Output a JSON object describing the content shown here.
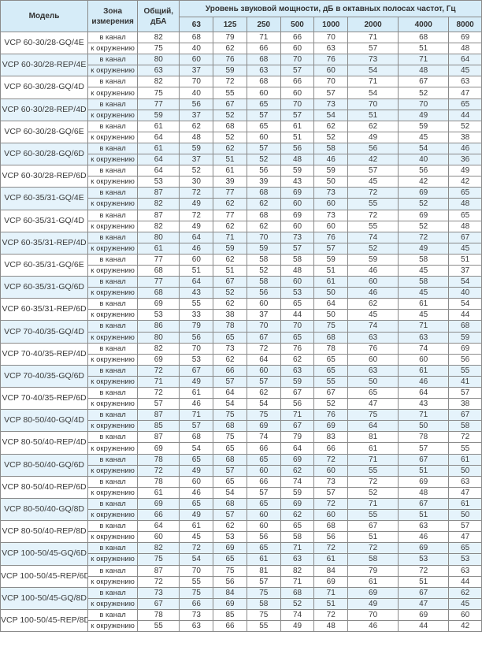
{
  "header": {
    "model": "Модель",
    "zone": "Зона измерения",
    "total": "Общий, дБА",
    "bands_title": "Уровень звуковой мощности, дБ в октавных полосах частот, Гц",
    "bands": [
      "63",
      "125",
      "250",
      "500",
      "1000",
      "2000",
      "4000",
      "8000"
    ]
  },
  "zones": [
    "в канал",
    "к окружению"
  ],
  "colors": {
    "header_bg": "#d6ecf8",
    "alt_row_bg": "#e5f3fb",
    "border": "#8a8a8a"
  },
  "rows": [
    {
      "model": "VCP 60-30/28-GQ/4E",
      "duct": [
        82,
        68,
        79,
        71,
        66,
        70,
        71,
        68,
        69
      ],
      "env": [
        75,
        40,
        62,
        66,
        60,
        63,
        57,
        51,
        48
      ]
    },
    {
      "model": "VCP 60-30/28-REP/4E",
      "duct": [
        80,
        60,
        76,
        68,
        70,
        76,
        73,
        71,
        64
      ],
      "env": [
        63,
        37,
        59,
        63,
        57,
        60,
        54,
        48,
        45
      ]
    },
    {
      "model": "VCP 60-30/28-GQ/4D",
      "duct": [
        82,
        70,
        72,
        68,
        66,
        70,
        71,
        67,
        63
      ],
      "env": [
        75,
        40,
        55,
        60,
        60,
        57,
        54,
        52,
        47
      ]
    },
    {
      "model": "VCP 60-30/28-REP/4D",
      "duct": [
        77,
        56,
        67,
        65,
        70,
        73,
        70,
        70,
        65
      ],
      "env": [
        59,
        37,
        52,
        57,
        57,
        54,
        51,
        49,
        44
      ]
    },
    {
      "model": "VCP 60-30/28-GQ/6E",
      "duct": [
        61,
        62,
        68,
        65,
        61,
        62,
        62,
        59,
        52
      ],
      "env": [
        64,
        48,
        52,
        60,
        51,
        52,
        49,
        45,
        38
      ]
    },
    {
      "model": "VCP 60-30/28-GQ/6D",
      "duct": [
        61,
        59,
        62,
        57,
        56,
        58,
        56,
        54,
        46
      ],
      "env": [
        64,
        37,
        51,
        52,
        48,
        46,
        42,
        40,
        36
      ]
    },
    {
      "model": "VCP 60-30/28-REP/6D",
      "duct": [
        64,
        52,
        61,
        56,
        59,
        59,
        57,
        56,
        49
      ],
      "env": [
        53,
        30,
        39,
        39,
        43,
        50,
        45,
        42,
        42
      ]
    },
    {
      "model": "VCP 60-35/31-GQ/4E",
      "duct": [
        87,
        72,
        77,
        68,
        69,
        73,
        72,
        69,
        65
      ],
      "env": [
        82,
        49,
        62,
        62,
        60,
        60,
        55,
        52,
        48
      ]
    },
    {
      "model": "VCP 60-35/31-GQ/4D",
      "duct": [
        87,
        72,
        77,
        68,
        69,
        73,
        72,
        69,
        65
      ],
      "env": [
        82,
        49,
        62,
        62,
        60,
        60,
        55,
        52,
        48
      ]
    },
    {
      "model": "VCP 60-35/31-REP/4D",
      "duct": [
        80,
        64,
        71,
        70,
        73,
        76,
        74,
        72,
        67
      ],
      "env": [
        61,
        46,
        59,
        59,
        57,
        57,
        52,
        49,
        45
      ]
    },
    {
      "model": "VCP 60-35/31-GQ/6E",
      "duct": [
        77,
        60,
        62,
        58,
        58,
        59,
        59,
        58,
        51
      ],
      "env": [
        68,
        51,
        51,
        52,
        48,
        51,
        46,
        45,
        37
      ]
    },
    {
      "model": "VCP 60-35/31-GQ/6D",
      "duct": [
        77,
        64,
        67,
        58,
        60,
        61,
        60,
        58,
        54
      ],
      "env": [
        68,
        43,
        52,
        56,
        53,
        50,
        46,
        45,
        40
      ]
    },
    {
      "model": "VCP 60-35/31-REP/6D",
      "duct": [
        69,
        55,
        62,
        60,
        65,
        64,
        62,
        61,
        54
      ],
      "env": [
        53,
        33,
        38,
        37,
        44,
        50,
        45,
        45,
        44
      ]
    },
    {
      "model": "VCP 70-40/35-GQ/4D",
      "duct": [
        86,
        79,
        78,
        70,
        70,
        75,
        74,
        71,
        68
      ],
      "env": [
        80,
        56,
        65,
        67,
        65,
        68,
        63,
        63,
        59
      ]
    },
    {
      "model": "VCP 70-40/35-REP/4D",
      "duct": [
        82,
        70,
        73,
        72,
        76,
        78,
        76,
        74,
        69
      ],
      "env": [
        69,
        53,
        62,
        64,
        62,
        65,
        60,
        60,
        56
      ]
    },
    {
      "model": "VCP 70-40/35-GQ/6D",
      "duct": [
        72,
        67,
        66,
        60,
        63,
        65,
        63,
        61,
        55
      ],
      "env": [
        71,
        49,
        57,
        57,
        59,
        55,
        50,
        46,
        41
      ]
    },
    {
      "model": "VCP 70-40/35-REP/6D",
      "duct": [
        72,
        61,
        64,
        62,
        67,
        67,
        65,
        64,
        57
      ],
      "env": [
        57,
        46,
        54,
        54,
        56,
        52,
        47,
        43,
        38
      ]
    },
    {
      "model": "VCP 80-50/40-GQ/4D",
      "duct": [
        87,
        71,
        75,
        75,
        71,
        76,
        75,
        71,
        67
      ],
      "env": [
        85,
        57,
        68,
        69,
        67,
        69,
        64,
        50,
        58
      ]
    },
    {
      "model": "VCP 80-50/40-REP/4D",
      "duct": [
        87,
        68,
        75,
        74,
        79,
        83,
        81,
        78,
        72
      ],
      "env": [
        69,
        54,
        65,
        66,
        64,
        66,
        61,
        57,
        55
      ]
    },
    {
      "model": "VCP 80-50/40-GQ/6D",
      "duct": [
        78,
        65,
        68,
        65,
        69,
        72,
        71,
        67,
        61
      ],
      "env": [
        72,
        49,
        57,
        60,
        62,
        60,
        55,
        51,
        50
      ]
    },
    {
      "model": "VCP 80-50/40-REP/6D",
      "duct": [
        78,
        60,
        65,
        66,
        74,
        73,
        72,
        69,
        63
      ],
      "env": [
        61,
        46,
        54,
        57,
        59,
        57,
        52,
        48,
        47
      ]
    },
    {
      "model": "VCP 80-50/40-GQ/8D",
      "duct": [
        69,
        65,
        68,
        65,
        69,
        72,
        71,
        67,
        61
      ],
      "env": [
        66,
        49,
        57,
        60,
        62,
        60,
        55,
        51,
        50
      ]
    },
    {
      "model": "VCP 80-50/40-REP/8D",
      "duct": [
        64,
        61,
        62,
        60,
        65,
        68,
        67,
        63,
        57
      ],
      "env": [
        60,
        45,
        53,
        56,
        58,
        56,
        51,
        46,
        47
      ]
    },
    {
      "model": "VCP 100-50/45-GQ/6D",
      "duct": [
        82,
        72,
        69,
        65,
        71,
        72,
        72,
        69,
        65
      ],
      "env": [
        75,
        54,
        65,
        61,
        63,
        61,
        58,
        53,
        53
      ]
    },
    {
      "model": "VCP 100-50/45-REP/6D",
      "duct": [
        87,
        70,
        75,
        81,
        82,
        84,
        79,
        72,
        63
      ],
      "env": [
        72,
        55,
        56,
        57,
        71,
        69,
        61,
        51,
        44
      ]
    },
    {
      "model": "VCP 100-50/45-GQ/8D",
      "duct": [
        73,
        75,
        84,
        75,
        68,
        71,
        69,
        67,
        62
      ],
      "env": [
        67,
        66,
        69,
        58,
        52,
        51,
        49,
        47,
        45
      ]
    },
    {
      "model": "VCP 100-50/45-REP/8D",
      "duct": [
        78,
        73,
        85,
        75,
        74,
        72,
        70,
        69,
        60
      ],
      "env": [
        55,
        63,
        66,
        55,
        49,
        48,
        46,
        44,
        42
      ]
    }
  ]
}
